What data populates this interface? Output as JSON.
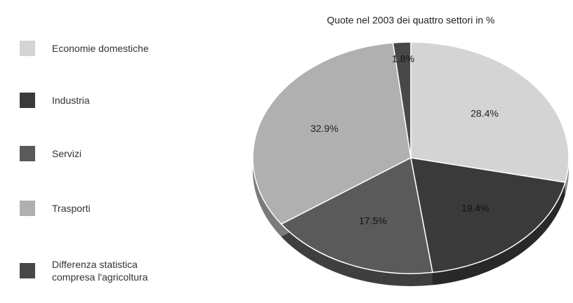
{
  "chart_data": {
    "type": "pie",
    "title": "Quote nel 2003 dei quattro settori in %",
    "categories": [
      "Economie domestiche",
      "Industria",
      "Servizi",
      "Trasporti",
      "Differenza statistica compresa l'agricoltura"
    ],
    "values": [
      28.4,
      19.4,
      17.5,
      32.9,
      1.8
    ],
    "value_labels": [
      "28.4%",
      "19.4%",
      "17.5%",
      "32.9%",
      "1.8%"
    ],
    "colors": [
      "#d4d4d4",
      "#3a3a3a",
      "#5a5a5a",
      "#b0b0b0",
      "#484848"
    ]
  }
}
